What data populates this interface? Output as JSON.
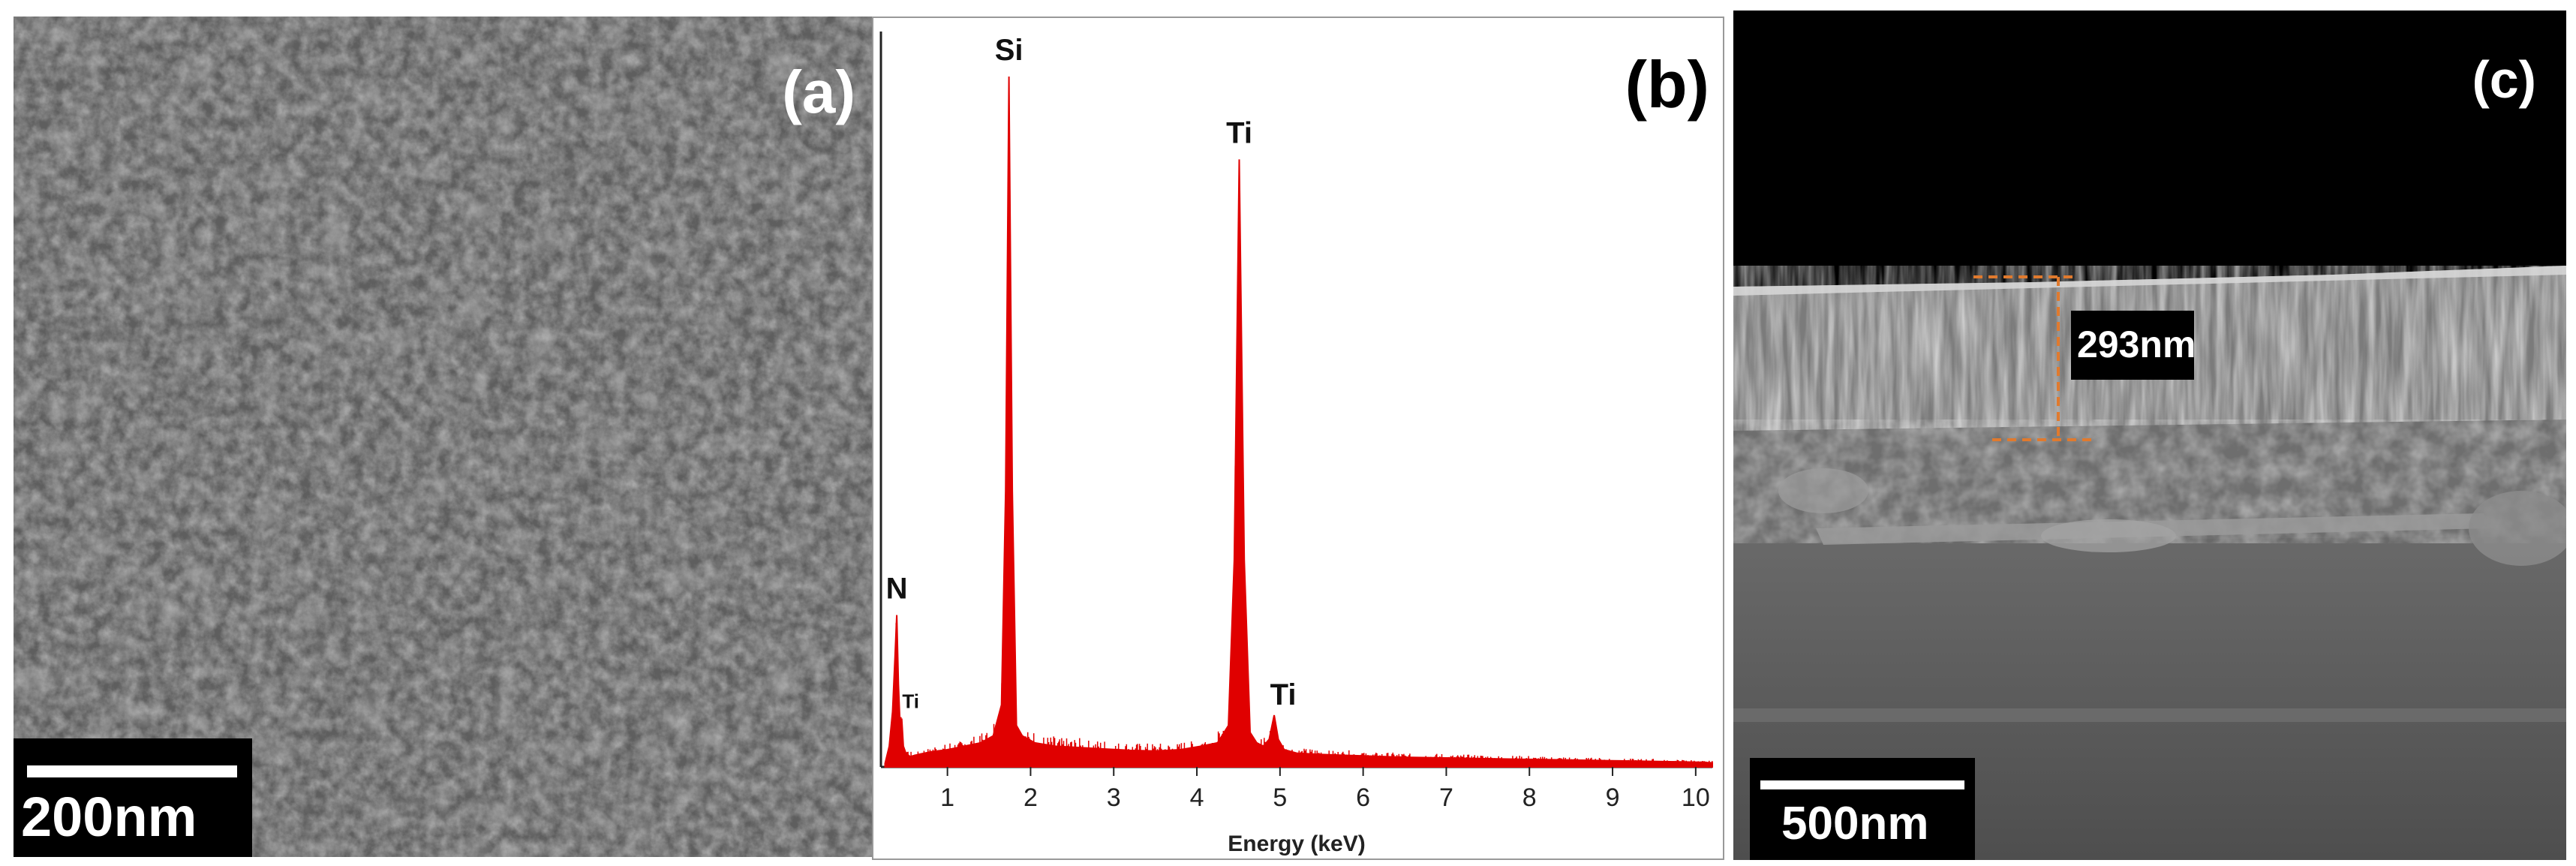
{
  "panels": {
    "a": {
      "label": "(a)",
      "scale_bar": "200nm"
    },
    "b": {
      "label": "(b)"
    },
    "c": {
      "label": "(c)",
      "scale_bar": "500nm",
      "thickness_annotation": "293nm"
    }
  },
  "chart_data": {
    "type": "line",
    "title": "",
    "xlabel": "Energy (keV)",
    "ylabel": "",
    "xlim": [
      0.2,
      10.2
    ],
    "ylim": [
      0,
      100
    ],
    "x_ticks": [
      "1",
      "2",
      "3",
      "4",
      "5",
      "6",
      "7",
      "8",
      "9",
      "10"
    ],
    "grid": false,
    "peak_labels": [
      {
        "text": "N",
        "x": 0.39,
        "y": 22
      },
      {
        "text": "Ti",
        "x": 0.45,
        "y": 7
      },
      {
        "text": "Si",
        "x": 1.74,
        "y": 100
      },
      {
        "text": "Ti",
        "x": 4.51,
        "y": 88
      },
      {
        "text": "Ti",
        "x": 4.93,
        "y": 7.5
      }
    ],
    "series": [
      {
        "color": "#e00000",
        "x": [
          0.25,
          0.3,
          0.34,
          0.37,
          0.39,
          0.41,
          0.43,
          0.45,
          0.47,
          0.5,
          0.55,
          0.65,
          0.8,
          1.0,
          1.2,
          1.4,
          1.55,
          1.65,
          1.7,
          1.74,
          1.78,
          1.83,
          1.9,
          2.05,
          2.3,
          2.6,
          2.9,
          3.2,
          3.5,
          3.8,
          4.05,
          4.25,
          4.38,
          4.45,
          4.51,
          4.57,
          4.64,
          4.72,
          4.8,
          4.87,
          4.93,
          4.98,
          5.05,
          5.2,
          5.5,
          6.0,
          6.5,
          7.0,
          7.5,
          8.0,
          8.5,
          9.0,
          9.5,
          10.0,
          10.2
        ],
        "y": [
          0.5,
          3,
          8,
          16,
          22,
          12,
          6,
          7,
          3,
          2,
          1.5,
          1.8,
          2.2,
          2.5,
          3,
          3.5,
          4.5,
          9,
          40,
          100,
          40,
          6,
          4.5,
          3.5,
          3,
          2.8,
          2.6,
          2.4,
          2.3,
          2.5,
          3,
          3.5,
          6,
          30,
          88,
          30,
          5,
          3.5,
          3,
          4,
          7.5,
          4,
          2.5,
          2,
          1.8,
          1.6,
          1.4,
          1.3,
          1.2,
          1.1,
          1.0,
          0.9,
          0.8,
          0.7,
          0.6
        ]
      }
    ]
  }
}
